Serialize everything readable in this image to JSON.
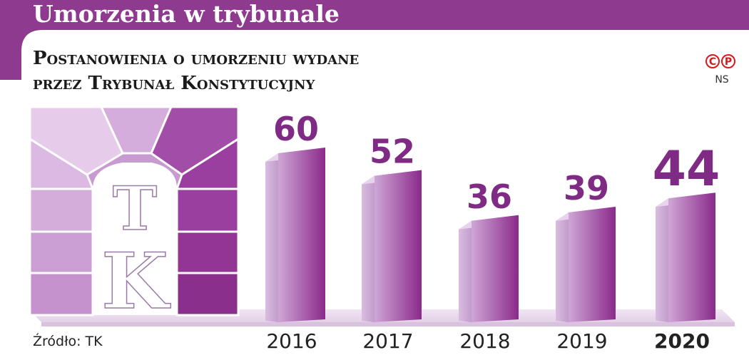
{
  "header": {
    "title": "Umorzenia w trybunale",
    "subtitle_line1": "Postanowienia o umorzeniu wydane",
    "subtitle_line2": "przez Trybunał Konstytucyjny"
  },
  "source": "Źródło: TK",
  "credit": {
    "mark_c": "C",
    "mark_p": "P",
    "author": "NS"
  },
  "logo": {
    "letter_top": "T",
    "letter_bottom": "K"
  },
  "colors": {
    "accent": "#8e3a8f",
    "value_text": "#7f2a84",
    "bar_light": "#d9b6df",
    "bar_dark": "#8f2f8f",
    "pedestal": "#e9dcec"
  },
  "chart_data": {
    "type": "bar",
    "categories": [
      "2016",
      "2017",
      "2018",
      "2019",
      "2020"
    ],
    "values": [
      60,
      52,
      36,
      39,
      44
    ],
    "highlight_category": "2020",
    "title": "Postanowienia o umorzeniu wydane przez Trybunał Konstytucyjny",
    "xlabel": "",
    "ylabel": "",
    "legend": "none",
    "grid": false
  }
}
